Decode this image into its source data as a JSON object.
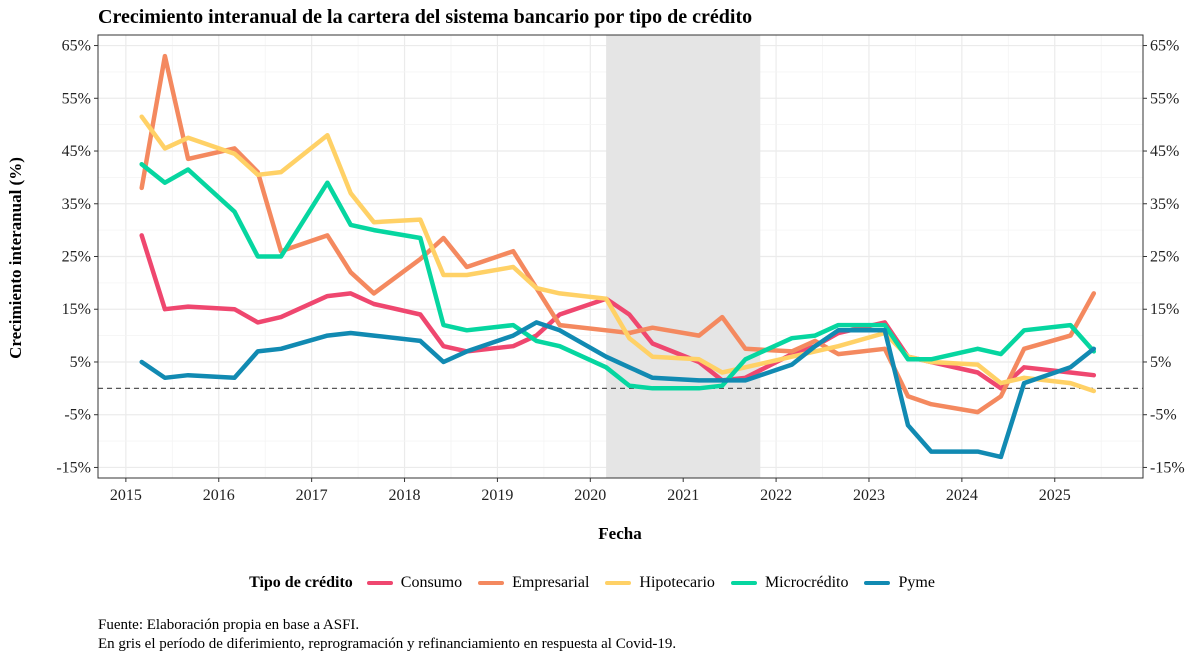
{
  "title": "Crecimiento interanual de la cartera del sistema bancario por tipo de crédito",
  "legend_title": "Tipo de crédito",
  "caption": {
    "line1": "Fuente: Elaboración propia en base a ASFI.",
    "line2": "En gris el período de diferimiento, reprogramación y refinanciamiento en respuesta al Covid-19."
  },
  "chart_data": {
    "type": "line",
    "title": "Crecimiento interanual de la cartera del sistema bancario por tipo de crédito",
    "xlabel": "Fecha",
    "ylabel": "Crecimiento interanual (%)",
    "xlim": [
      2014.7,
      2025.95
    ],
    "ylim": [
      -17,
      67
    ],
    "x_ticks": [
      2015,
      2016,
      2017,
      2018,
      2019,
      2020,
      2021,
      2022,
      2023,
      2024,
      2025
    ],
    "y_ticks": [
      65,
      55,
      45,
      35,
      25,
      15,
      5,
      -5,
      -15
    ],
    "y_tick_labels": [
      "65%",
      "55%",
      "45%",
      "35%",
      "25%",
      "15%",
      "5%",
      "-5%",
      "-15%"
    ],
    "reference_line": {
      "y": 0,
      "style": "dashed"
    },
    "shaded_period": {
      "x_start": 2020.17,
      "x_end": 2021.83,
      "color": "#e5e5e5"
    },
    "grid": true,
    "legend_position": "bottom",
    "x": [
      2015.17,
      2015.42,
      2015.67,
      2016.17,
      2016.42,
      2016.67,
      2017.17,
      2017.42,
      2017.67,
      2018.17,
      2018.42,
      2018.67,
      2019.17,
      2019.42,
      2019.67,
      2020.17,
      2020.42,
      2020.67,
      2021.17,
      2021.42,
      2021.67,
      2022.17,
      2022.42,
      2022.67,
      2023.17,
      2023.42,
      2023.67,
      2024.17,
      2024.42,
      2024.67,
      2025.17,
      2025.42
    ],
    "series": [
      {
        "name": "Consumo",
        "color": "#ef476f",
        "values": [
          29,
          15,
          15.5,
          15,
          12.5,
          13.5,
          17.5,
          18,
          16,
          14,
          8,
          7,
          8,
          10,
          14,
          17,
          14,
          8.5,
          5,
          1.5,
          2,
          6.5,
          8,
          10.5,
          12.5,
          6,
          5,
          3,
          0,
          4,
          3,
          2.5
        ]
      },
      {
        "name": "Empresarial",
        "color": "#f4895f",
        "values": [
          38,
          63,
          43.5,
          45.5,
          41,
          26,
          29,
          22,
          18,
          24.5,
          28.5,
          23,
          26,
          19,
          12,
          11,
          10.5,
          11.5,
          10,
          13.5,
          7.5,
          7,
          9,
          6.5,
          7.5,
          -1.5,
          -3,
          -4.5,
          -1.5,
          7.5,
          10,
          18
        ]
      },
      {
        "name": "Hipotecario",
        "color": "#ffd166",
        "values": [
          51.5,
          45.5,
          47.5,
          44.5,
          40.5,
          41,
          48,
          37,
          31.5,
          32,
          21.5,
          21.5,
          23,
          19,
          18,
          17,
          9.5,
          6,
          5.5,
          3,
          4,
          6,
          7,
          8,
          10.5,
          6,
          5,
          4.5,
          1,
          2,
          1,
          -0.5
        ]
      },
      {
        "name": "Microcrédito",
        "color": "#06d6a0",
        "values": [
          42.5,
          39,
          41.5,
          33.5,
          25,
          25,
          39,
          31,
          30,
          28.5,
          12,
          11,
          12,
          9,
          8,
          4,
          0.5,
          0,
          0,
          0.5,
          5.5,
          9.5,
          10,
          12,
          12,
          5.5,
          5.5,
          7.5,
          6.5,
          11,
          12,
          7
        ]
      },
      {
        "name": "Pyme",
        "color": "#118ab2",
        "values": [
          5,
          2,
          2.5,
          2,
          7,
          7.5,
          10,
          10.5,
          10,
          9,
          5,
          7,
          10,
          12.5,
          11,
          6,
          4,
          2,
          1.5,
          1.5,
          1.5,
          4.5,
          8,
          11,
          11,
          -7,
          -12,
          -12,
          -13,
          1,
          4,
          7.5
        ]
      }
    ]
  }
}
